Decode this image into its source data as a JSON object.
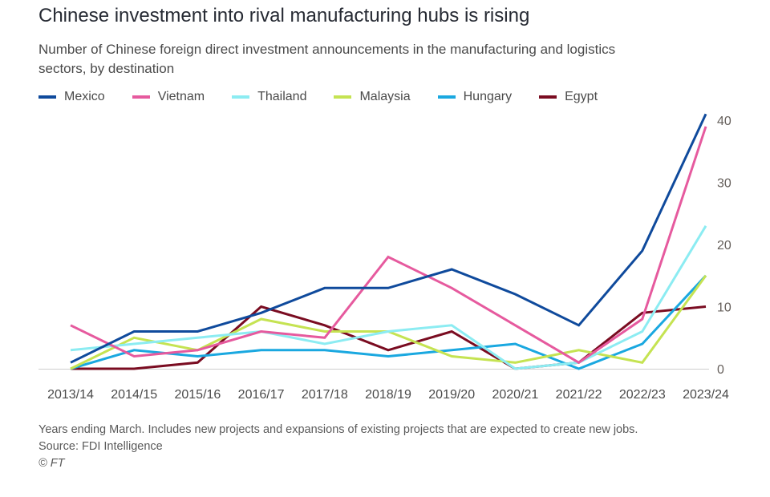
{
  "title": "Chinese investment into rival manufacturing hubs is rising",
  "subtitle": "Number of Chinese foreign direct investment announcements in the manufacturing and logistics sectors, by destination",
  "footer": {
    "note": "Years ending March. Includes new projects and expansions of existing projects that are expected to create new jobs.",
    "source": "Source: FDI Intelligence",
    "copyright": "© FT"
  },
  "chart_data": {
    "type": "line",
    "x": [
      "2013/14",
      "2014/15",
      "2015/16",
      "2016/17",
      "2017/18",
      "2018/19",
      "2019/20",
      "2020/21",
      "2021/22",
      "2022/23",
      "2023/24"
    ],
    "ylim": [
      0,
      40
    ],
    "yticks": [
      0,
      10,
      20,
      30,
      40
    ],
    "grid": false,
    "legend_position": "top",
    "series": [
      {
        "name": "Mexico",
        "color": "#0f4a9c",
        "values": [
          1,
          6,
          6,
          9,
          13,
          13,
          16,
          12,
          7,
          19,
          41
        ]
      },
      {
        "name": "Vietnam",
        "color": "#e65a9e",
        "values": [
          7,
          2,
          3,
          6,
          5,
          18,
          13,
          7,
          1,
          8,
          39
        ]
      },
      {
        "name": "Thailand",
        "color": "#8cecf2",
        "values": [
          3,
          4,
          5,
          6,
          4,
          6,
          7,
          0,
          1,
          6,
          23
        ]
      },
      {
        "name": "Malaysia",
        "color": "#c5e352",
        "values": [
          0,
          5,
          3,
          8,
          6,
          6,
          2,
          1,
          3,
          1,
          15
        ]
      },
      {
        "name": "Hungary",
        "color": "#1aa8e0",
        "values": [
          0,
          3,
          2,
          3,
          3,
          2,
          3,
          4,
          0,
          4,
          15
        ]
      },
      {
        "name": "Egypt",
        "color": "#7a0c21",
        "values": [
          0,
          0,
          1,
          10,
          7,
          3,
          6,
          0,
          1,
          9,
          10
        ]
      }
    ]
  }
}
